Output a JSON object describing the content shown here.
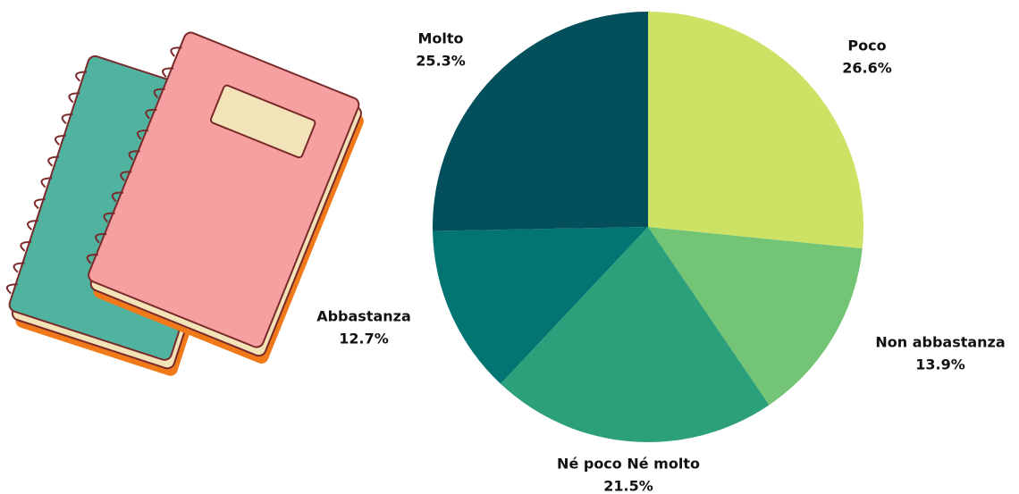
{
  "chart_data": {
    "type": "pie",
    "categories": [
      "Poco",
      "Non abbastanza",
      "Né poco Né molto",
      "Abbastanza",
      "Molto"
    ],
    "values": [
      26.6,
      13.9,
      21.5,
      12.7,
      25.3
    ],
    "value_labels": [
      "26.6%",
      "13.9%",
      "21.5%",
      "12.7%",
      "25.3%"
    ],
    "colors": [
      "#cce265",
      "#74c476",
      "#2ca07a",
      "#027572",
      "#03505c"
    ]
  }
}
